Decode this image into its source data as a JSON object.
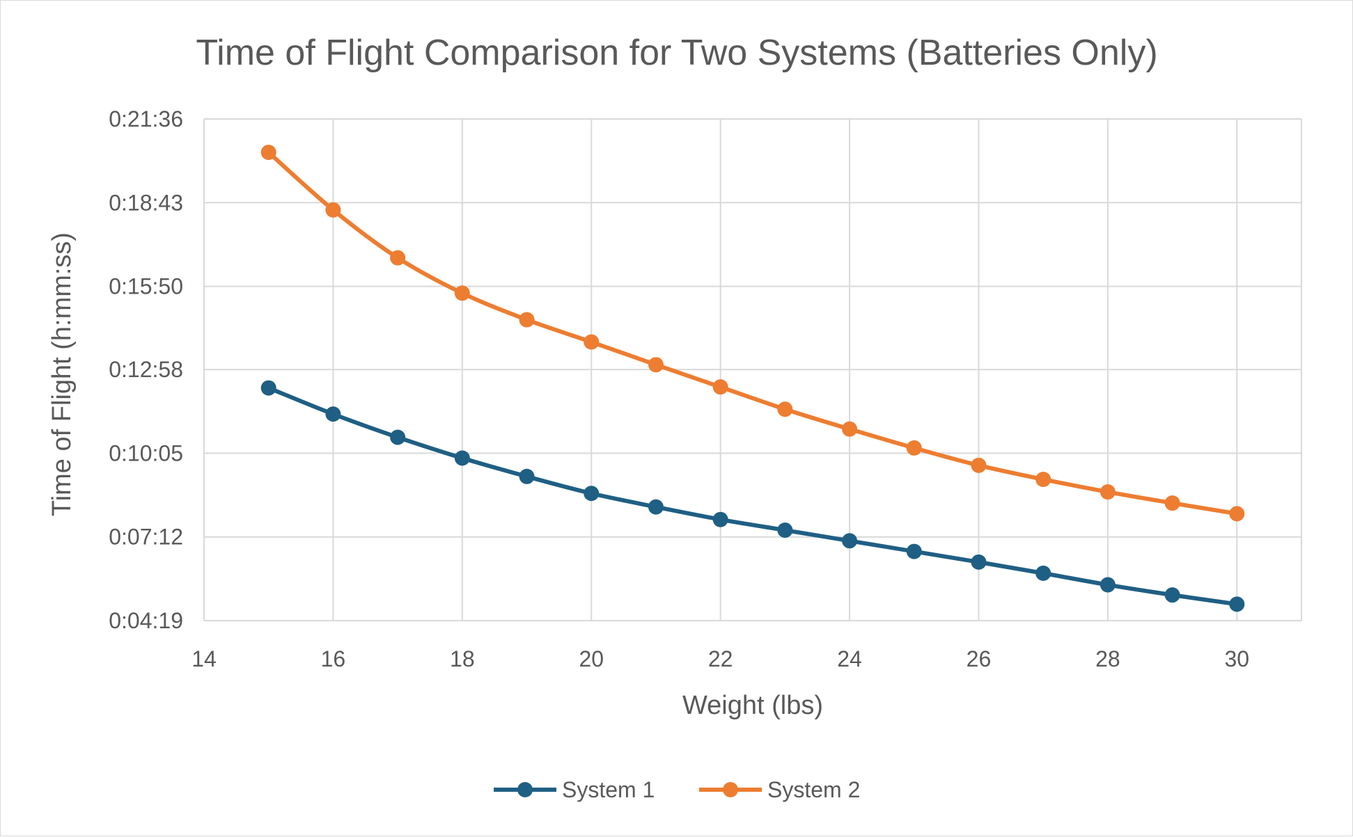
{
  "chart_data": {
    "type": "line",
    "title": "Time of Flight Comparison for Two Systems (Batteries Only)",
    "xlabel": "Weight (lbs)",
    "ylabel": "Time of Flight (h:mm:ss)",
    "xlim": [
      14,
      31
    ],
    "x_ticks": [
      14,
      16,
      18,
      20,
      22,
      24,
      26,
      28,
      30
    ],
    "x_tick_labels": [
      "14",
      "16",
      "18",
      "20",
      "22",
      "24",
      "26",
      "28",
      "30"
    ],
    "ylim_seconds": [
      259,
      1296
    ],
    "y_ticks_seconds": [
      259,
      432,
      605,
      778,
      950,
      1123,
      1296
    ],
    "y_tick_labels": [
      "0:04:19",
      "0:07:12",
      "0:10:05",
      "0:12:58",
      "0:15:50",
      "0:18:43",
      "0:21:36"
    ],
    "grid": true,
    "smooth": true,
    "legend_position": "bottom",
    "series": [
      {
        "name": "System 1",
        "color": "#1f5f84",
        "x": [
          15,
          16,
          17,
          18,
          19,
          20,
          21,
          22,
          23,
          24,
          25,
          26,
          27,
          28,
          29,
          30
        ],
        "y_seconds": [
          740,
          686,
          638,
          595,
          557,
          522,
          494,
          468,
          446,
          424,
          402,
          380,
          357,
          333,
          312,
          293
        ]
      },
      {
        "name": "System 2",
        "color": "#ed7d31",
        "x": [
          15,
          16,
          17,
          18,
          19,
          20,
          21,
          22,
          23,
          24,
          25,
          26,
          27,
          28,
          29,
          30
        ],
        "y_seconds": [
          1227,
          1108,
          1009,
          936,
          881,
          835,
          788,
          742,
          696,
          655,
          616,
          580,
          551,
          525,
          502,
          480
        ]
      }
    ]
  }
}
